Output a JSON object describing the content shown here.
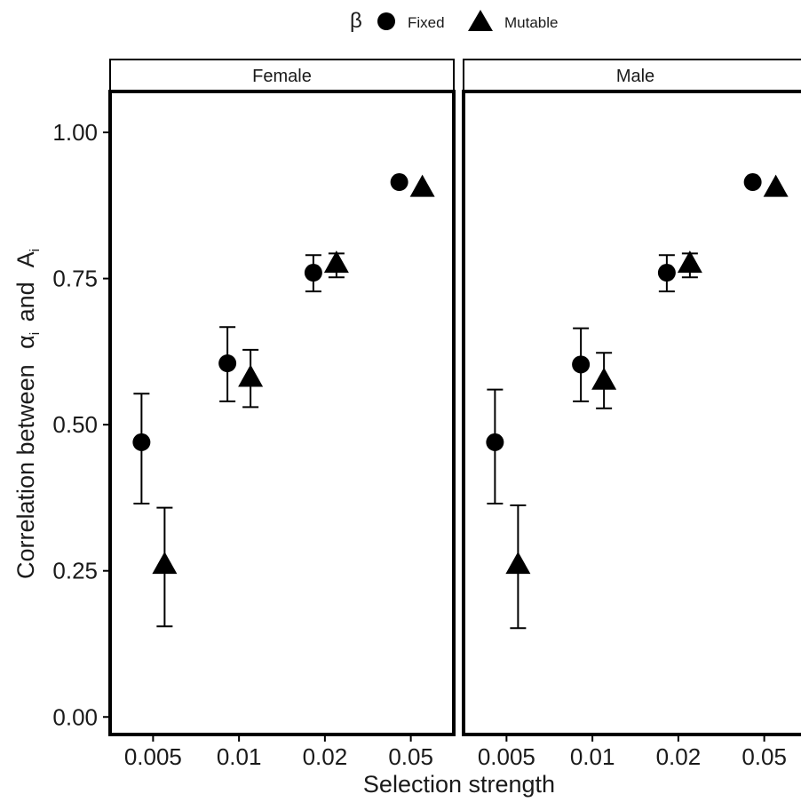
{
  "chart_data": {
    "type": "scatter",
    "legend": {
      "title": "β",
      "position": "top",
      "entries": [
        {
          "label": "Fixed",
          "shape": "circle"
        },
        {
          "label": "Mutable",
          "shape": "triangle"
        }
      ]
    },
    "ylabel_main": "Correlation between",
    "ylabel_alpha": "α",
    "ylabel_and": "and",
    "ylabel_A": "A",
    "ylabel_sub": "i",
    "xlabel": "Selection strength",
    "categories": [
      "0.005",
      "0.01",
      "0.02",
      "0.05"
    ],
    "y_ticks": [
      "0.00",
      "0.25",
      "0.50",
      "0.75",
      "1.00"
    ],
    "ylim": [
      -0.03,
      1.07
    ],
    "grid": false,
    "colors": {
      "points": "#000000",
      "frame": "#000000",
      "background": "#ffffff"
    },
    "panels": [
      {
        "title": "Female",
        "series": [
          {
            "shape": "circle",
            "values": [
              0.47,
              0.605,
              0.76,
              0.915
            ],
            "lower": [
              0.365,
              0.54,
              0.728,
              0.915
            ],
            "upper": [
              0.553,
              0.667,
              0.79,
              0.915
            ]
          },
          {
            "shape": "triangle",
            "values": [
              0.26,
              0.58,
              0.775,
              0.905
            ],
            "lower": [
              0.155,
              0.53,
              0.752,
              0.905
            ],
            "upper": [
              0.358,
              0.628,
              0.793,
              0.905
            ]
          }
        ]
      },
      {
        "title": "Male",
        "series": [
          {
            "shape": "circle",
            "values": [
              0.47,
              0.603,
              0.76,
              0.915
            ],
            "lower": [
              0.365,
              0.54,
              0.728,
              0.915
            ],
            "upper": [
              0.56,
              0.665,
              0.79,
              0.915
            ]
          },
          {
            "shape": "triangle",
            "values": [
              0.26,
              0.575,
              0.775,
              0.905
            ],
            "lower": [
              0.152,
              0.528,
              0.752,
              0.905
            ],
            "upper": [
              0.362,
              0.623,
              0.793,
              0.905
            ]
          }
        ]
      }
    ]
  }
}
